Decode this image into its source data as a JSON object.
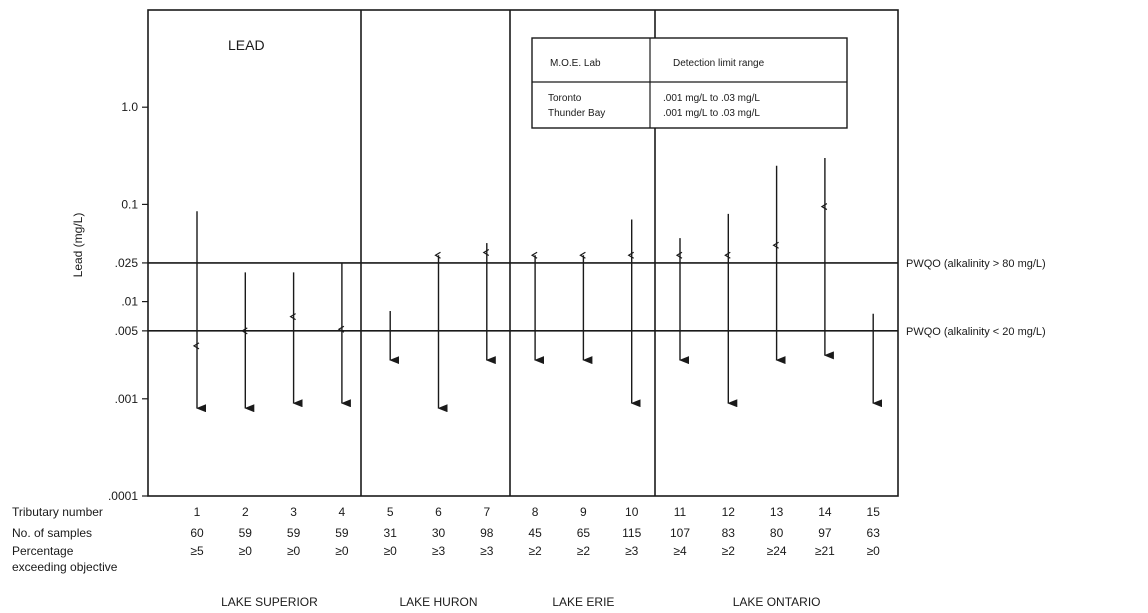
{
  "chart_data": {
    "type": "scatter",
    "title": "LEAD",
    "ylabel": "Lead   (mg/L)",
    "y_scale": "log",
    "ylim": [
      0.0001,
      10
    ],
    "y_ticks": [
      {
        "value": 0.0001,
        "label": ".0001"
      },
      {
        "value": 0.001,
        "label": ".001"
      },
      {
        "value": 0.005,
        "label": ".005"
      },
      {
        "value": 0.01,
        "label": ".01"
      },
      {
        "value": 0.025,
        "label": ".025"
      },
      {
        "value": 0.1,
        "label": "0.1"
      },
      {
        "value": 1.0,
        "label": "1.0"
      }
    ],
    "objectives": [
      {
        "value": 0.025,
        "label": "PWQO (alkalinity  > 80 mg/L)"
      },
      {
        "value": 0.005,
        "label": "PWQO (alkalinity  < 20 mg/L)"
      }
    ],
    "tributaries": [
      {
        "number": "1",
        "samples": "60",
        "percent": "≥5",
        "max": 0.085,
        "min": 0.0008,
        "median": 0.0035
      },
      {
        "number": "2",
        "samples": "59",
        "percent": "≥0",
        "max": 0.02,
        "min": 0.0008,
        "median": 0.005
      },
      {
        "number": "3",
        "samples": "59",
        "percent": "≥0",
        "max": 0.02,
        "min": 0.0009,
        "median": 0.007
      },
      {
        "number": "4",
        "samples": "59",
        "percent": "≥0",
        "max": 0.025,
        "min": 0.0009,
        "median": 0.0052
      },
      {
        "number": "5",
        "samples": "31",
        "percent": "≥0",
        "max": 0.008,
        "min": 0.0025
      },
      {
        "number": "6",
        "samples": "30",
        "percent": "≥3",
        "max": 0.03,
        "min": 0.0008,
        "median": 0.03
      },
      {
        "number": "7",
        "samples": "98",
        "percent": "≥3",
        "max": 0.04,
        "min": 0.0025,
        "median": 0.032
      },
      {
        "number": "8",
        "samples": "45",
        "percent": "≥2",
        "max": 0.03,
        "min": 0.0025,
        "median": 0.03
      },
      {
        "number": "9",
        "samples": "65",
        "percent": "≥2",
        "max": 0.03,
        "min": 0.0025,
        "median": 0.03
      },
      {
        "number": "10",
        "samples": "115",
        "percent": "≥3",
        "max": 0.07,
        "min": 0.0009,
        "median": 0.03
      },
      {
        "number": "11",
        "samples": "107",
        "percent": "≥4",
        "max": 0.045,
        "min": 0.0025,
        "median": 0.03
      },
      {
        "number": "12",
        "samples": "83",
        "percent": "≥2",
        "max": 0.08,
        "min": 0.0009,
        "median": 0.03
      },
      {
        "number": "13",
        "samples": "80",
        "percent": "≥24",
        "max": 0.25,
        "min": 0.0025,
        "median": 0.038
      },
      {
        "number": "14",
        "samples": "97",
        "percent": "≥21",
        "max": 0.3,
        "min": 0.0028,
        "median": 0.095
      },
      {
        "number": "15",
        "samples": "63",
        "percent": "≥0",
        "max": 0.0075,
        "min": 0.0009
      }
    ],
    "row_labels": {
      "tributary": "Tributary number",
      "samples": "No. of samples",
      "percent_1": "Percentage",
      "percent_2": "exceeding objective"
    },
    "lakes": [
      {
        "name": "LAKE SUPERIOR",
        "from": 1,
        "to": 4
      },
      {
        "name": "LAKE HURON",
        "from": 5,
        "to": 7
      },
      {
        "name": "LAKE ERIE",
        "from": 8,
        "to": 10
      },
      {
        "name": "LAKE ONTARIO",
        "from": 11,
        "to": 15
      }
    ],
    "legend_table": {
      "header": [
        "M.O.E. Lab",
        "Detection limit range"
      ],
      "rows": [
        [
          "Toronto",
          ".001 mg/L to .03 mg/L"
        ],
        [
          "Thunder Bay",
          ".001 mg/L to .03 mg/L"
        ]
      ]
    }
  }
}
